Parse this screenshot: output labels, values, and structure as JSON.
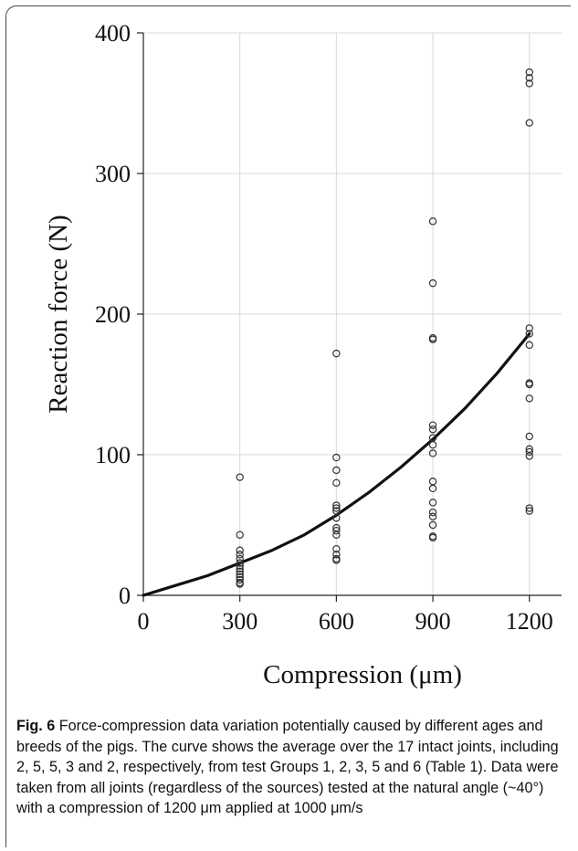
{
  "figure": {
    "caption_label": "Fig. 6",
    "caption_text": "Force-compression data variation potentially caused by different ages and breeds of the pigs. The curve shows the average over the 17 intact joints, including 2, 5, 5, 3 and 2, respectively, from test Groups 1, 2, 3, 5 and 6 (Table 1). Data were taken from all joints (regardless of the sources) tested at the natural angle (~40°) with a compression of 1200 μm applied at 1000 μm/s"
  },
  "chart_data": {
    "type": "scatter",
    "title": "",
    "xlabel": "Compression (μm)",
    "ylabel": "Reaction force (N)",
    "xlim": [
      0,
      1300
    ],
    "ylim": [
      0,
      400
    ],
    "xticks": [
      0,
      300,
      600,
      900,
      1200
    ],
    "yticks": [
      0,
      100,
      200,
      300,
      400
    ],
    "grid": true,
    "legend": "none",
    "series": [
      {
        "marker": "open-circle",
        "points": [
          [
            300,
            84
          ],
          [
            300,
            43
          ],
          [
            300,
            32
          ],
          [
            300,
            29
          ],
          [
            300,
            26
          ],
          [
            300,
            23
          ],
          [
            300,
            21
          ],
          [
            300,
            19
          ],
          [
            300,
            17
          ],
          [
            300,
            15
          ],
          [
            300,
            13
          ],
          [
            300,
            11
          ],
          [
            300,
            9
          ],
          [
            300,
            8
          ],
          [
            600,
            172
          ],
          [
            600,
            98
          ],
          [
            600,
            89
          ],
          [
            600,
            80
          ],
          [
            600,
            64
          ],
          [
            600,
            62
          ],
          [
            600,
            60
          ],
          [
            600,
            55
          ],
          [
            600,
            48
          ],
          [
            600,
            46
          ],
          [
            600,
            43
          ],
          [
            600,
            33
          ],
          [
            600,
            29
          ],
          [
            600,
            26
          ],
          [
            600,
            25
          ],
          [
            900,
            266
          ],
          [
            900,
            222
          ],
          [
            900,
            183
          ],
          [
            900,
            182
          ],
          [
            900,
            121
          ],
          [
            900,
            118
          ],
          [
            900,
            112
          ],
          [
            900,
            107
          ],
          [
            900,
            101
          ],
          [
            900,
            81
          ],
          [
            900,
            76
          ],
          [
            900,
            66
          ],
          [
            900,
            59
          ],
          [
            900,
            56
          ],
          [
            900,
            50
          ],
          [
            900,
            42
          ],
          [
            900,
            41
          ],
          [
            1200,
            372
          ],
          [
            1200,
            368
          ],
          [
            1200,
            364
          ],
          [
            1200,
            336
          ],
          [
            1200,
            190
          ],
          [
            1200,
            186
          ],
          [
            1200,
            178
          ],
          [
            1200,
            151
          ],
          [
            1200,
            150
          ],
          [
            1200,
            140
          ],
          [
            1200,
            113
          ],
          [
            1200,
            104
          ],
          [
            1200,
            102
          ],
          [
            1200,
            99
          ],
          [
            1200,
            62
          ],
          [
            1200,
            60
          ]
        ]
      },
      {
        "marker": "line",
        "points": [
          [
            0,
            0
          ],
          [
            100,
            7
          ],
          [
            200,
            14
          ],
          [
            300,
            23
          ],
          [
            400,
            32
          ],
          [
            500,
            43
          ],
          [
            600,
            57
          ],
          [
            700,
            73
          ],
          [
            800,
            91
          ],
          [
            900,
            111
          ],
          [
            1000,
            133
          ],
          [
            1100,
            158
          ],
          [
            1200,
            186
          ]
        ]
      }
    ]
  }
}
